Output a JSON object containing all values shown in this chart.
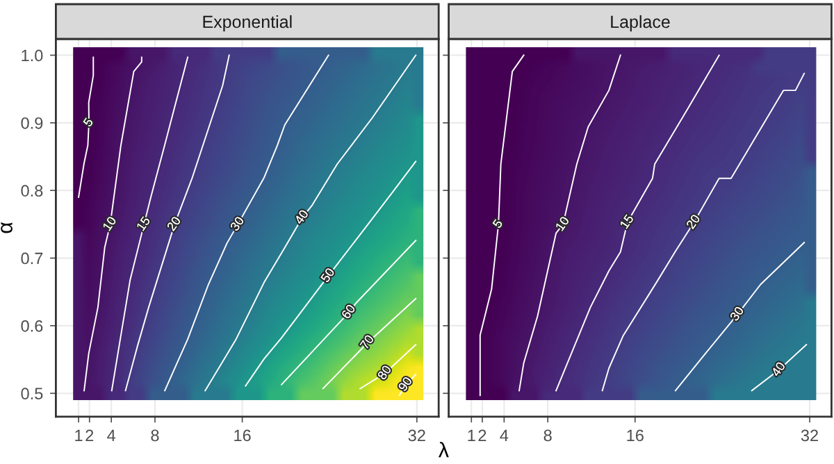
{
  "chart_data": [
    {
      "type": "line",
      "title": "Exponential",
      "ylabel": "α",
      "xlabel": "λ",
      "grid": true,
      "line_style": "solid",
      "xlim": [
        -1.08,
        34
      ],
      "ylim": [
        0.4655,
        1.024
      ],
      "xticks": [
        1,
        2,
        4,
        8,
        16,
        32
      ],
      "yticks": [
        0.5,
        0.6,
        0.7,
        0.8,
        0.9,
        {
          "value": 1,
          "label": "1.0"
        }
      ],
      "series": [
        {
          "name": "5",
          "color": "#ffffff",
          "x": [
            1.0,
            1.5,
            1.85,
            1.95,
            1.93,
            2.35,
            2.35
          ],
          "values": [
            0.79,
            0.84,
            0.867,
            0.9,
            0.93,
            0.97,
            0.997
          ]
        },
        {
          "name": "10",
          "color": "#ffffff",
          "x": [
            1.51,
            1.93,
            2.77,
            3.4,
            3.9,
            4.88,
            6.06,
            6.78,
            6.78
          ],
          "values": [
            0.504,
            0.559,
            0.627,
            0.716,
            0.75,
            0.867,
            0.976,
            0.99,
            0.997
          ]
        },
        {
          "name": "15",
          "color": "#ffffff",
          "x": [
            4.04,
            4.88,
            5.73,
            7.0,
            7.62,
            8.89,
            11.0
          ],
          "values": [
            0.504,
            0.586,
            0.668,
            0.75,
            0.79,
            0.867,
            0.997
          ]
        },
        {
          "name": "20",
          "color": "#ffffff",
          "x": [
            5.3,
            6.4,
            7.42,
            9.8,
            11.4,
            14.2,
            14.8
          ],
          "values": [
            0.504,
            0.57,
            0.627,
            0.75,
            0.818,
            0.955,
            1.0
          ]
        },
        {
          "name": "30",
          "color": "#ffffff",
          "x": [
            8.9,
            11.0,
            12.9,
            14.6,
            15.6,
            18.0,
            19.2,
            19.9,
            23.9
          ],
          "values": [
            0.504,
            0.58,
            0.661,
            0.722,
            0.75,
            0.819,
            0.866,
            0.897,
            1.0
          ]
        },
        {
          "name": "40",
          "color": "#ffffff",
          "x": [
            12.6,
            15.4,
            18.0,
            19.8,
            21.5,
            22.4,
            24.7,
            27.9,
            31.9
          ],
          "values": [
            0.504,
            0.579,
            0.664,
            0.713,
            0.76,
            0.778,
            0.839,
            0.907,
            1.0
          ]
        },
        {
          "name": "50",
          "color": "#ffffff",
          "x": [
            16.3,
            18.0,
            19.6,
            23.9,
            27.0,
            29.8,
            31.9
          ],
          "values": [
            0.511,
            0.551,
            0.582,
            0.674,
            0.739,
            0.798,
            0.843
          ]
        },
        {
          "name": "60",
          "color": "#ffffff",
          "x": [
            19.6,
            22.5,
            25.8,
            26.4,
            31.9
          ],
          "values": [
            0.513,
            0.563,
            0.62,
            0.633,
            0.726
          ]
        },
        {
          "name": "70",
          "color": "#ffffff",
          "x": [
            23.4,
            27.5,
            31.9
          ],
          "values": [
            0.507,
            0.575,
            0.64
          ]
        },
        {
          "name": "80",
          "color": "#ffffff",
          "x": [
            26.8,
            29.1,
            31.9
          ],
          "values": [
            0.507,
            0.53,
            0.572
          ]
        },
        {
          "name": "90",
          "color": "#ffffff",
          "x": [
            30.4,
            31.0,
            31.9
          ],
          "values": [
            0.497,
            0.513,
            0.528
          ]
        }
      ]
    },
    {
      "type": "line",
      "title": "Laplace",
      "tick_labels": "x",
      "grid": true,
      "line_style": "solid",
      "xlim": [
        -1.08,
        34
      ],
      "ylim": [
        0.4655,
        1.024
      ],
      "xticks": [
        1,
        2,
        4,
        8,
        16,
        32
      ],
      "yticks": [
        0.5,
        0.6,
        0.7,
        0.8,
        0.9,
        1.0
      ],
      "series": [
        {
          "name": "5",
          "color": "#ffffff",
          "x": [
            1.8,
            1.8,
            2.85,
            3.48,
            3.7,
            4.75,
            5.8
          ],
          "values": [
            0.497,
            0.586,
            0.654,
            0.75,
            0.839,
            0.976,
            1.0
          ]
        },
        {
          "name": "10",
          "color": "#ffffff",
          "x": [
            5.38,
            5.8,
            7.06,
            8.76,
            9.4,
            10.66,
            11.7,
            13.6,
            14.66
          ],
          "values": [
            0.504,
            0.545,
            0.614,
            0.737,
            0.75,
            0.839,
            0.894,
            0.948,
            1.0
          ]
        },
        {
          "name": "15",
          "color": "#ffffff",
          "x": [
            8.76,
            11.9,
            13.6,
            14.66,
            15.3,
            17.6,
            17.8,
            20.8,
            23.7
          ],
          "values": [
            0.504,
            0.627,
            0.681,
            0.709,
            0.753,
            0.818,
            0.839,
            0.92,
            1.0
          ]
        },
        {
          "name": "20",
          "color": "#ffffff",
          "x": [
            13.0,
            13.6,
            14.9,
            18.0,
            19.7,
            21.4,
            23.7,
            24.8,
            29.6,
            30.7,
            31.5
          ],
          "values": [
            0.504,
            0.537,
            0.585,
            0.665,
            0.71,
            0.753,
            0.818,
            0.818,
            0.948,
            0.948,
            0.973
          ]
        },
        {
          "name": "30",
          "color": "#ffffff",
          "x": [
            19.7,
            22.5,
            25.4,
            27.5,
            31.5
          ],
          "values": [
            0.504,
            0.56,
            0.617,
            0.661,
            0.723
          ]
        },
        {
          "name": "40",
          "color": "#ffffff",
          "x": [
            26.7,
            29.2,
            31.7
          ],
          "values": [
            0.504,
            0.535,
            0.572
          ]
        }
      ]
    }
  ]
}
